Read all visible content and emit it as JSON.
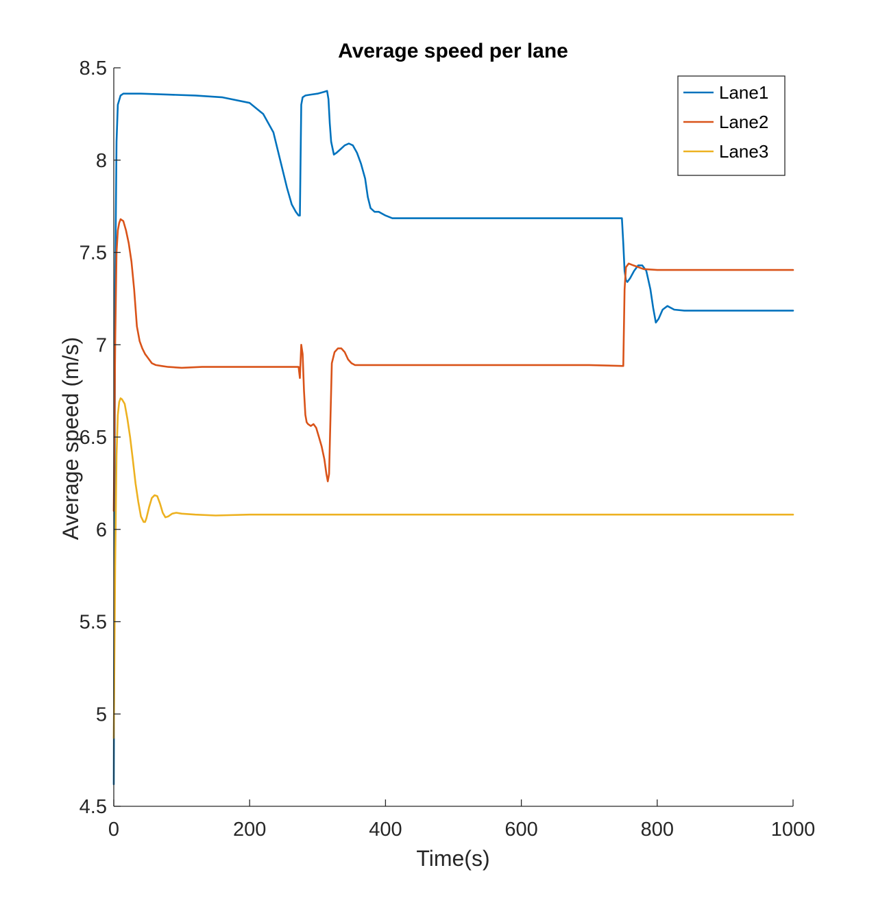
{
  "chart_data": {
    "type": "line",
    "title": "Average speed per lane",
    "xlabel": "Time(s)",
    "ylabel": "Average speed (m/s)",
    "xlim": [
      0,
      1000
    ],
    "ylim": [
      4.5,
      8.5
    ],
    "xticks": [
      0,
      200,
      400,
      600,
      800,
      1000
    ],
    "xtick_labels": [
      "0",
      "200",
      "400",
      "600",
      "800",
      "1000"
    ],
    "yticks": [
      4.5,
      5,
      5.5,
      6,
      6.5,
      7,
      7.5,
      8,
      8.5
    ],
    "ytick_labels": [
      "4.5",
      "5",
      "5.5",
      "6",
      "6.5",
      "7",
      "7.5",
      "8",
      "8.5"
    ],
    "grid": false,
    "legend_position": "top-right",
    "series": [
      {
        "name": "Lane1",
        "color": "#0072BD",
        "x": [
          0,
          2,
          4,
          6,
          10,
          14,
          20,
          40,
          80,
          120,
          160,
          200,
          220,
          235,
          245,
          255,
          262,
          268,
          272,
          274,
          276,
          278,
          282,
          290,
          300,
          310,
          314,
          316,
          318,
          320,
          324,
          328,
          334,
          340,
          346,
          352,
          358,
          364,
          370,
          374,
          378,
          384,
          390,
          400,
          410,
          450,
          500,
          600,
          700,
          748,
          750,
          752,
          754,
          756,
          760,
          766,
          772,
          778,
          784,
          790,
          794,
          798,
          802,
          808,
          815,
          825,
          840,
          900,
          1000
        ],
        "y": [
          4.62,
          7.3,
          8.1,
          8.3,
          8.35,
          8.36,
          8.36,
          8.36,
          8.355,
          8.35,
          8.34,
          8.31,
          8.25,
          8.15,
          8.0,
          7.85,
          7.76,
          7.72,
          7.7,
          7.7,
          8.3,
          8.34,
          8.35,
          8.355,
          8.36,
          8.37,
          8.375,
          8.33,
          8.2,
          8.1,
          8.03,
          8.04,
          8.06,
          8.08,
          8.09,
          8.08,
          8.04,
          7.98,
          7.9,
          7.8,
          7.74,
          7.72,
          7.72,
          7.7,
          7.685,
          7.685,
          7.685,
          7.685,
          7.685,
          7.685,
          7.55,
          7.4,
          7.35,
          7.34,
          7.36,
          7.4,
          7.43,
          7.43,
          7.4,
          7.3,
          7.2,
          7.12,
          7.14,
          7.19,
          7.21,
          7.19,
          7.185,
          7.185,
          7.185
        ]
      },
      {
        "name": "Lane2",
        "color": "#D95319",
        "x": [
          0,
          2,
          4,
          6,
          8,
          10,
          14,
          18,
          22,
          26,
          30,
          34,
          38,
          42,
          46,
          50,
          56,
          62,
          70,
          80,
          100,
          130,
          160,
          200,
          240,
          272,
          274,
          276,
          278,
          280,
          282,
          284,
          286,
          290,
          294,
          298,
          302,
          306,
          310,
          313,
          315,
          317,
          319,
          321,
          325,
          330,
          335,
          340,
          345,
          350,
          355,
          360,
          400,
          500,
          600,
          700,
          748,
          750,
          752,
          754,
          758,
          765,
          780,
          800,
          900,
          1000
        ],
        "y": [
          6.1,
          7.0,
          7.5,
          7.62,
          7.66,
          7.68,
          7.67,
          7.62,
          7.55,
          7.45,
          7.3,
          7.1,
          7.02,
          6.98,
          6.95,
          6.93,
          6.9,
          6.89,
          6.885,
          6.88,
          6.875,
          6.88,
          6.88,
          6.88,
          6.88,
          6.88,
          6.82,
          7.0,
          6.95,
          6.75,
          6.62,
          6.58,
          6.57,
          6.56,
          6.57,
          6.55,
          6.5,
          6.45,
          6.38,
          6.3,
          6.26,
          6.3,
          6.6,
          6.9,
          6.96,
          6.98,
          6.98,
          6.96,
          6.92,
          6.9,
          6.89,
          6.89,
          6.89,
          6.89,
          6.89,
          6.89,
          6.885,
          6.885,
          7.3,
          7.42,
          7.44,
          7.43,
          7.41,
          7.405,
          7.405,
          7.405
        ]
      },
      {
        "name": "Lane3",
        "color": "#EDB120",
        "x": [
          0,
          2,
          4,
          6,
          8,
          10,
          12,
          16,
          20,
          24,
          28,
          32,
          36,
          40,
          44,
          46,
          48,
          52,
          56,
          60,
          64,
          68,
          72,
          76,
          80,
          86,
          92,
          100,
          120,
          150,
          200,
          300,
          400,
          500,
          600,
          700,
          800,
          900,
          1000
        ],
        "y": [
          4.87,
          5.8,
          6.4,
          6.62,
          6.69,
          6.71,
          6.705,
          6.68,
          6.6,
          6.5,
          6.38,
          6.25,
          6.15,
          6.07,
          6.04,
          6.04,
          6.06,
          6.12,
          6.17,
          6.185,
          6.18,
          6.14,
          6.09,
          6.065,
          6.07,
          6.085,
          6.09,
          6.085,
          6.08,
          6.075,
          6.08,
          6.08,
          6.08,
          6.08,
          6.08,
          6.08,
          6.08,
          6.08,
          6.08
        ]
      }
    ]
  }
}
